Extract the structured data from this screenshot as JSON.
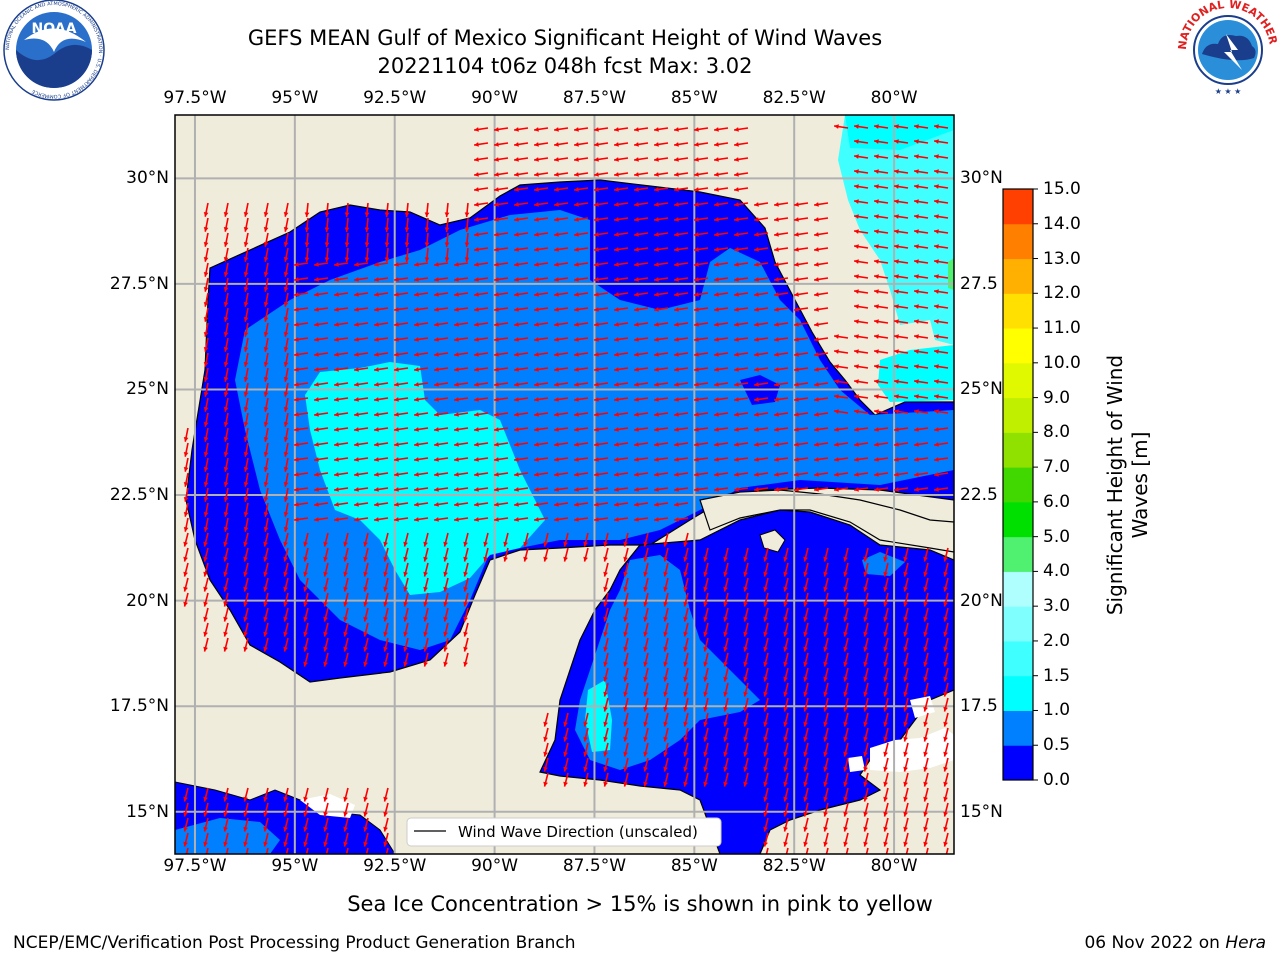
{
  "title": {
    "line1": "GEFS MEAN Gulf of Mexico Significant Height of Wind Waves",
    "line2": "20221104 t06z 048h fcst   Max: 3.02"
  },
  "map": {
    "lon_ticks": [
      "97.5°W",
      "95°W",
      "92.5°W",
      "90°W",
      "87.5°W",
      "85°W",
      "82.5°W",
      "80°W"
    ],
    "lat_ticks": [
      "30°N",
      "27.5°N",
      "25°N",
      "22.5°N",
      "20°N",
      "17.5°N",
      "15°N"
    ],
    "lat_ticks_right": [
      "30°N",
      "27.5",
      "25°N",
      "22.5",
      "20°N",
      "17.5",
      "15°N"
    ],
    "legend": {
      "label": "Wind Wave Direction (unscaled)"
    },
    "land_color": "#efecdc",
    "arrow_color": "#ff0000",
    "grid": true
  },
  "colorbar": {
    "label": "Significant Height of Wind Waves [m]",
    "label_line1": "Significant Height of Wind",
    "label_line2": "Waves [m]",
    "ticks": [
      "15.0",
      "14.0",
      "13.0",
      "12.0",
      "11.0",
      "10.0",
      "9.0",
      "8.0",
      "7.0",
      "6.0",
      "5.0",
      "4.0",
      "3.0",
      "2.0",
      "1.5",
      "1.0",
      "0.5",
      "0.0"
    ],
    "colors": [
      "#0000ff",
      "#0080ff",
      "#00ffff",
      "#40ffff",
      "#80ffff",
      "#b0ffff",
      "#50f070",
      "#00e000",
      "#40d800",
      "#90e000",
      "#c0f000",
      "#e0f800",
      "#ffff00",
      "#ffe000",
      "#ffb000",
      "#ff8000",
      "#ff4000",
      "#ff0000"
    ]
  },
  "chart_data": {
    "type": "heatmap",
    "title": "GEFS MEAN Gulf of Mexico Significant Height of Wind Waves",
    "max_value": 3.02,
    "units": "m",
    "lon_range": [
      -98.0,
      -78.5
    ],
    "lat_range": [
      14.0,
      31.5
    ],
    "levels": [
      0.0,
      0.5,
      1.0,
      1.5,
      2.0,
      3.0,
      4.0,
      5.0,
      6.0,
      7.0,
      8.0,
      9.0,
      10.0,
      11.0,
      12.0,
      13.0,
      14.0,
      15.0
    ]
  },
  "footnote": "Sea Ice Concentration > 15% is shown in pink to yellow",
  "footer": {
    "left": "NCEP/EMC/Verification Post Processing Product Generation Branch",
    "date": "06 Nov 2022 on ",
    "host": "Hera"
  },
  "logos": {
    "noaa": "NOAA",
    "noaa_ring": "NATIONAL OCEANIC AND ATMOSPHERIC ADMINISTRATION · U.S. DEPARTMENT OF COMMERCE",
    "nws_ring": "NATIONAL WEATHER SERVICE"
  }
}
